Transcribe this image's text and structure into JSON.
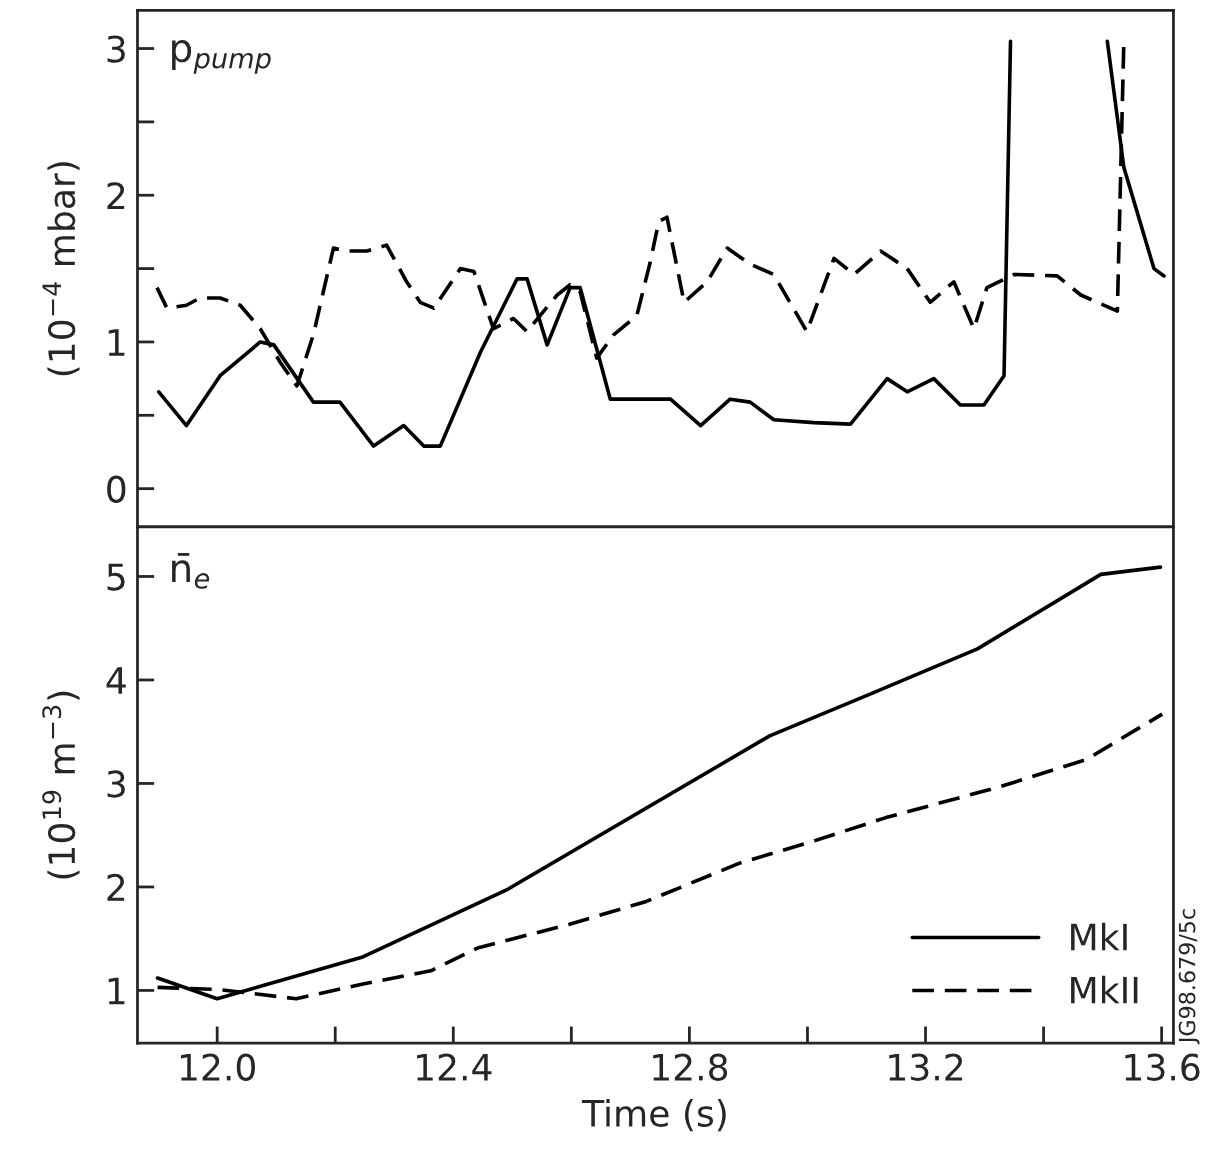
{
  "chart_data": [
    {
      "type": "line",
      "title": "p$_{pump}$",
      "ylabel": "(10$^{−4}$ mbar)",
      "xlim": [
        11.865,
        13.62
      ],
      "ylim": [
        -0.26,
        3.26
      ],
      "yticks": [
        0,
        {
          "value": 0.5,
          "label": null
        },
        1,
        {
          "value": 1.5,
          "label": null
        },
        2,
        {
          "value": 2.5,
          "label": null
        },
        3
      ],
      "tick_labels": "y",
      "grid": false,
      "series": [
        {
          "color": "#000000",
          "line_style": "solid",
          "x": [
            11.901,
            11.948,
            12.005,
            12.073,
            12.096,
            12.163,
            12.208,
            12.265,
            12.316,
            12.35,
            12.378,
            12.446,
            12.508,
            12.525,
            12.559,
            12.598,
            12.615,
            12.666,
            12.768,
            12.819,
            12.869,
            12.903,
            12.943,
            13.011,
            13.073,
            13.135,
            13.169,
            13.214,
            13.259,
            13.299,
            13.333,
            13.344,
            13.42,
            13.508,
            13.536,
            13.587,
            13.604
          ],
          "values": [
            0.66,
            0.43,
            0.77,
            1.0,
            0.98,
            0.59,
            0.59,
            0.29,
            0.43,
            0.29,
            0.29,
            0.93,
            1.43,
            1.43,
            0.98,
            1.37,
            1.37,
            0.61,
            0.61,
            0.43,
            0.61,
            0.59,
            0.47,
            0.45,
            0.44,
            0.75,
            0.66,
            0.75,
            0.57,
            0.57,
            0.77,
            3.05,
            null,
            3.05,
            2.19,
            1.5,
            1.45
          ]
        },
        {
          "color": "#000000",
          "line_style": "dashed",
          "x": [
            11.898,
            11.915,
            11.948,
            11.971,
            12.005,
            12.039,
            12.073,
            12.107,
            12.135,
            12.163,
            12.197,
            12.22,
            12.254,
            12.287,
            12.321,
            12.344,
            12.367,
            12.412,
            12.435,
            12.468,
            12.502,
            12.525,
            12.547,
            12.576,
            12.598,
            12.615,
            12.643,
            12.672,
            12.711,
            12.734,
            12.748,
            12.762,
            12.791,
            12.83,
            12.864,
            12.903,
            12.943,
            12.999,
            13.045,
            13.079,
            13.124,
            13.169,
            13.208,
            13.248,
            13.282,
            13.304,
            13.35,
            13.423,
            13.463,
            13.525,
            13.536
          ],
          "values": [
            1.37,
            1.23,
            1.25,
            1.3,
            1.3,
            1.25,
            1.09,
            0.86,
            0.7,
            1.05,
            1.64,
            1.62,
            1.62,
            1.66,
            1.41,
            1.27,
            1.23,
            1.5,
            1.48,
            1.09,
            1.16,
            1.07,
            1.18,
            1.32,
            1.39,
            1.34,
            0.89,
            1.05,
            1.18,
            1.55,
            1.82,
            1.85,
            1.27,
            1.41,
            1.64,
            1.53,
            1.46,
            1.07,
            1.57,
            1.46,
            1.62,
            1.5,
            1.27,
            1.41,
            1.09,
            1.37,
            1.46,
            1.45,
            1.32,
            1.21,
            3.05
          ]
        }
      ]
    },
    {
      "type": "line",
      "title": "n̄$_{e}$",
      "xlabel": "Time (s)",
      "ylabel": "(10$^{19}$ m$^{−3}$)",
      "xlim": [
        11.865,
        13.62
      ],
      "ylim": [
        0.49,
        5.48
      ],
      "xticks": [
        {
          "value": 12.0,
          "label": "12.0"
        },
        {
          "value": 12.2,
          "label": null
        },
        {
          "value": 12.4,
          "label": "12.4"
        },
        {
          "value": 12.6,
          "label": null
        },
        {
          "value": 12.8,
          "label": "12.8"
        },
        {
          "value": 13.0,
          "label": null
        },
        {
          "value": 13.2,
          "label": "13.2"
        },
        {
          "value": 13.4,
          "label": null
        },
        {
          "value": 13.6,
          "label": "13.6"
        }
      ],
      "yticks": [
        1,
        2,
        3,
        4,
        5
      ],
      "grid": false,
      "legend": "bottom right",
      "annotations": [
        "JG98.679/5c"
      ],
      "series": [
        {
          "name": "MkI",
          "color": "#000000",
          "line_style": "solid",
          "x": [
            11.899,
            12.0,
            12.245,
            12.493,
            12.936,
            13.105,
            13.288,
            13.497,
            13.598
          ],
          "values": [
            1.12,
            0.92,
            1.32,
            1.98,
            3.46,
            3.86,
            4.3,
            5.02,
            5.09
          ]
        },
        {
          "name": "MkII",
          "color": "#000000",
          "line_style": "dashed",
          "x": [
            11.899,
            12.0,
            12.134,
            12.245,
            12.362,
            12.441,
            12.597,
            12.727,
            12.885,
            13.014,
            13.133,
            13.327,
            13.472,
            13.601
          ],
          "values": [
            1.03,
            1.01,
            0.92,
            1.06,
            1.19,
            1.41,
            1.64,
            1.86,
            2.23,
            2.45,
            2.67,
            2.97,
            3.23,
            3.67
          ]
        }
      ]
    }
  ]
}
